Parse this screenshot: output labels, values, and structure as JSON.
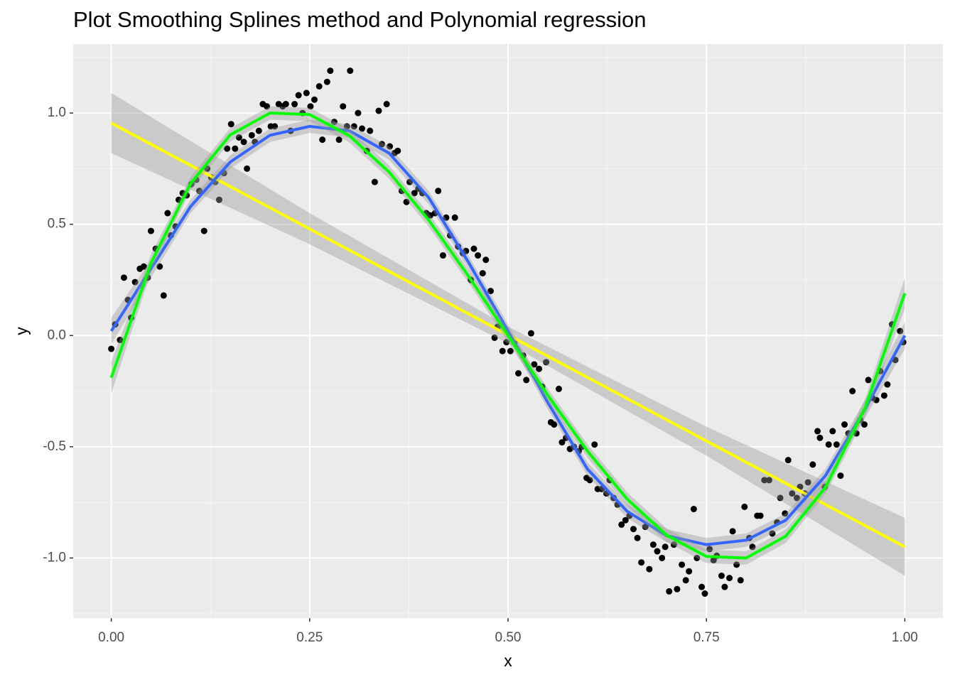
{
  "chart_data": {
    "type": "scatter",
    "title": "Plot Smoothing Splines method and Polynomial regression",
    "x_label": "x",
    "y_label": "y",
    "xlim": [
      -0.048,
      1.048
    ],
    "ylim": [
      -1.27,
      1.31
    ],
    "xticks": [
      {
        "value": 0,
        "label": "0.00"
      },
      {
        "value": 0.25,
        "label": "0.25"
      },
      {
        "value": 0.5,
        "label": "0.50"
      },
      {
        "value": 0.75,
        "label": "0.75"
      },
      {
        "value": 1,
        "label": "1.00"
      }
    ],
    "yticks": [
      {
        "value": -1,
        "label": "-1.0"
      },
      {
        "value": -0.5,
        "label": "-0.5"
      },
      {
        "value": 0,
        "label": "0.0"
      },
      {
        "value": 0.5,
        "label": "0.5"
      },
      {
        "value": 1,
        "label": "1.0"
      }
    ],
    "x_minor_ticks": [
      0.125,
      0.375,
      0.625,
      0.875
    ],
    "y_minor_ticks": [
      -1.25,
      -0.75,
      -0.25,
      0.25,
      0.75,
      1.25
    ],
    "grid": true,
    "color": "#000000",
    "x": [
      0,
      0.005,
      0.011,
      0.016,
      0.021,
      0.025,
      0.03,
      0.036,
      0.041,
      0.046,
      0.05,
      0.056,
      0.061,
      0.066,
      0.071,
      0.075,
      0.081,
      0.085,
      0.09,
      0.095,
      0.101,
      0.107,
      0.111,
      0.117,
      0.121,
      0.126,
      0.131,
      0.136,
      0.142,
      0.146,
      0.151,
      0.156,
      0.161,
      0.167,
      0.171,
      0.177,
      0.181,
      0.186,
      0.191,
      0.196,
      0.201,
      0.206,
      0.211,
      0.216,
      0.22,
      0.226,
      0.231,
      0.236,
      0.241,
      0.246,
      0.251,
      0.256,
      0.262,
      0.266,
      0.272,
      0.276,
      0.281,
      0.287,
      0.292,
      0.297,
      0.301,
      0.306,
      0.311,
      0.316,
      0.322,
      0.326,
      0.332,
      0.337,
      0.341,
      0.347,
      0.351,
      0.357,
      0.361,
      0.366,
      0.372,
      0.376,
      0.382,
      0.387,
      0.392,
      0.397,
      0.402,
      0.408,
      0.412,
      0.418,
      0.422,
      0.427,
      0.433,
      0.437,
      0.443,
      0.447,
      0.453,
      0.457,
      0.462,
      0.468,
      0.472,
      0.478,
      0.483,
      0.487,
      0.493,
      0.498,
      0.503,
      0.508,
      0.513,
      0.519,
      0.523,
      0.529,
      0.533,
      0.539,
      0.543,
      0.548,
      0.554,
      0.558,
      0.564,
      0.568,
      0.573,
      0.578,
      0.583,
      0.589,
      0.593,
      0.599,
      0.603,
      0.609,
      0.613,
      0.618,
      0.624,
      0.628,
      0.633,
      0.638,
      0.643,
      0.648,
      0.653,
      0.658,
      0.663,
      0.668,
      0.673,
      0.678,
      0.683,
      0.688,
      0.694,
      0.698,
      0.703,
      0.709,
      0.713,
      0.719,
      0.724,
      0.728,
      0.734,
      0.738,
      0.744,
      0.748,
      0.754,
      0.759,
      0.763,
      0.769,
      0.773,
      0.779,
      0.783,
      0.788,
      0.793,
      0.798,
      0.804,
      0.808,
      0.814,
      0.818,
      0.823,
      0.829,
      0.833,
      0.839,
      0.843,
      0.849,
      0.853,
      0.858,
      0.864,
      0.868,
      0.874,
      0.878,
      0.884,
      0.89,
      0.893,
      0.899,
      0.904,
      0.909,
      0.914,
      0.919,
      0.924,
      0.929,
      0.934,
      0.939,
      0.944,
      0.949,
      0.954,
      0.959,
      0.964,
      0.969,
      0.974,
      0.978,
      0.984,
      0.988,
      0.994,
      0.998
    ],
    "values": [
      -0.06,
      0.05,
      -0.02,
      0.26,
      0.16,
      0.08,
      0.24,
      0.3,
      0.31,
      0.26,
      0.47,
      0.39,
      0.31,
      0.18,
      0.55,
      0.45,
      0.49,
      0.61,
      0.64,
      0.63,
      0.68,
      0.7,
      0.65,
      0.47,
      0.75,
      0.71,
      0.69,
      0.61,
      0.73,
      0.84,
      0.95,
      0.84,
      0.89,
      0.87,
      0.75,
      0.9,
      0.87,
      0.92,
      1.04,
      1.03,
      0.94,
      0.94,
      1.04,
      1.03,
      1.04,
      0.92,
      1.04,
      1.08,
      1.0,
      1.09,
      1.03,
      1.06,
      1.12,
      0.88,
      1.14,
      1.19,
      0.96,
      0.88,
      1.03,
      0.94,
      1.19,
      0.94,
      1.0,
      0.93,
      0.83,
      0.92,
      0.69,
      1.01,
      0.86,
      1.04,
      0.85,
      0.82,
      0.83,
      0.65,
      0.6,
      0.69,
      0.64,
      0.66,
      0.64,
      0.55,
      0.54,
      0.55,
      0.65,
      0.36,
      0.53,
      0.45,
      0.53,
      0.4,
      0.37,
      0.38,
      0.25,
      0.39,
      0.36,
      0.28,
      0.34,
      0.2,
      -0.01,
      0.04,
      -0.07,
      -0.03,
      -0.07,
      -0.03,
      -0.17,
      -0.09,
      -0.2,
      0.01,
      -0.13,
      -0.15,
      -0.23,
      -0.12,
      -0.39,
      -0.4,
      -0.24,
      -0.48,
      -0.46,
      -0.51,
      -0.5,
      -0.52,
      -0.5,
      -0.64,
      -0.65,
      -0.49,
      -0.69,
      -0.69,
      -0.71,
      -0.65,
      -0.73,
      -0.76,
      -0.85,
      -0.83,
      -0.81,
      -0.87,
      -0.91,
      -1.02,
      -0.86,
      -1.05,
      -0.94,
      -0.97,
      -1.0,
      -0.95,
      -1.15,
      -0.94,
      -1.14,
      -1.03,
      -1.1,
      -1.06,
      -0.78,
      -1.0,
      -1.13,
      -1.16,
      -0.96,
      -1.01,
      -0.99,
      -1.08,
      -1.13,
      -1.09,
      -0.88,
      -1.03,
      -1.1,
      -0.77,
      -0.91,
      -0.95,
      -0.81,
      -0.81,
      -0.65,
      -0.65,
      -0.89,
      -0.84,
      -0.73,
      -0.8,
      -0.56,
      -0.71,
      -0.73,
      -0.68,
      -0.71,
      -0.66,
      -0.58,
      -0.43,
      -0.46,
      -0.68,
      -0.49,
      -0.43,
      -0.49,
      -0.63,
      -0.4,
      -0.44,
      -0.25,
      -0.44,
      -0.38,
      -0.4,
      -0.2,
      -0.28,
      -0.29,
      -0.16,
      -0.27,
      -0.22,
      0.05,
      -0.11,
      0.02,
      -0.03
    ],
    "lines": [
      {
        "color": "#ffff00",
        "band_color": "#999999",
        "x": [
          0,
          0.25,
          0.5,
          0.75,
          1
        ],
        "values": [
          0.955,
          0.479,
          0.0025,
          -0.474,
          -0.95
        ],
        "lower": [
          0.82,
          0.41,
          -0.035,
          -0.54,
          -1.08
        ],
        "upper": [
          1.09,
          0.55,
          0.04,
          -0.41,
          -0.82
        ]
      },
      {
        "color": "#3366ff",
        "band_color": "#999999",
        "x": [
          0,
          0.05,
          0.1,
          0.15,
          0.2,
          0.25,
          0.3,
          0.35,
          0.4,
          0.45,
          0.5,
          0.55,
          0.6,
          0.65,
          0.7,
          0.75,
          0.8,
          0.85,
          0.9,
          0.95,
          1
        ],
        "values": [
          0.02,
          0.3,
          0.58,
          0.78,
          0.9,
          0.94,
          0.92,
          0.82,
          0.62,
          0.33,
          0.02,
          -0.3,
          -0.6,
          -0.79,
          -0.9,
          -0.94,
          -0.92,
          -0.83,
          -0.63,
          -0.33,
          0.0
        ],
        "lower": [
          -0.04,
          0.26,
          0.55,
          0.75,
          0.87,
          0.91,
          0.89,
          0.79,
          0.59,
          0.3,
          -0.01,
          -0.33,
          -0.63,
          -0.82,
          -0.93,
          -0.97,
          -0.95,
          -0.86,
          -0.66,
          -0.37,
          -0.06
        ],
        "upper": [
          0.08,
          0.34,
          0.61,
          0.81,
          0.93,
          0.97,
          0.95,
          0.85,
          0.65,
          0.36,
          0.05,
          -0.27,
          -0.57,
          -0.76,
          -0.87,
          -0.91,
          -0.89,
          -0.8,
          -0.6,
          -0.29,
          0.06
        ]
      },
      {
        "color": "#00ff00",
        "band_color": "#999999",
        "x": [
          0,
          0.05,
          0.1,
          0.15,
          0.2,
          0.25,
          0.3,
          0.35,
          0.4,
          0.45,
          0.5,
          0.55,
          0.6,
          0.65,
          0.7,
          0.75,
          0.8,
          0.85,
          0.9,
          0.95,
          1
        ],
        "values": [
          -0.19,
          0.325,
          0.683,
          0.902,
          1.0,
          0.993,
          0.898,
          0.735,
          0.519,
          0.268,
          0,
          -0.268,
          -0.519,
          -0.735,
          -0.898,
          -0.993,
          -1.0,
          -0.902,
          -0.683,
          -0.325,
          0.19
        ],
        "lower": [
          -0.26,
          0.285,
          0.653,
          0.872,
          0.97,
          0.963,
          0.868,
          0.705,
          0.489,
          0.238,
          -0.03,
          -0.298,
          -0.549,
          -0.765,
          -0.928,
          -1.023,
          -1.03,
          -0.932,
          -0.713,
          -0.365,
          0.12
        ],
        "upper": [
          -0.12,
          0.365,
          0.713,
          0.932,
          1.03,
          1.023,
          0.928,
          0.765,
          0.549,
          0.298,
          0.03,
          -0.238,
          -0.489,
          -0.705,
          -0.868,
          -0.963,
          -0.97,
          -0.872,
          -0.653,
          -0.285,
          0.26
        ]
      }
    ]
  }
}
